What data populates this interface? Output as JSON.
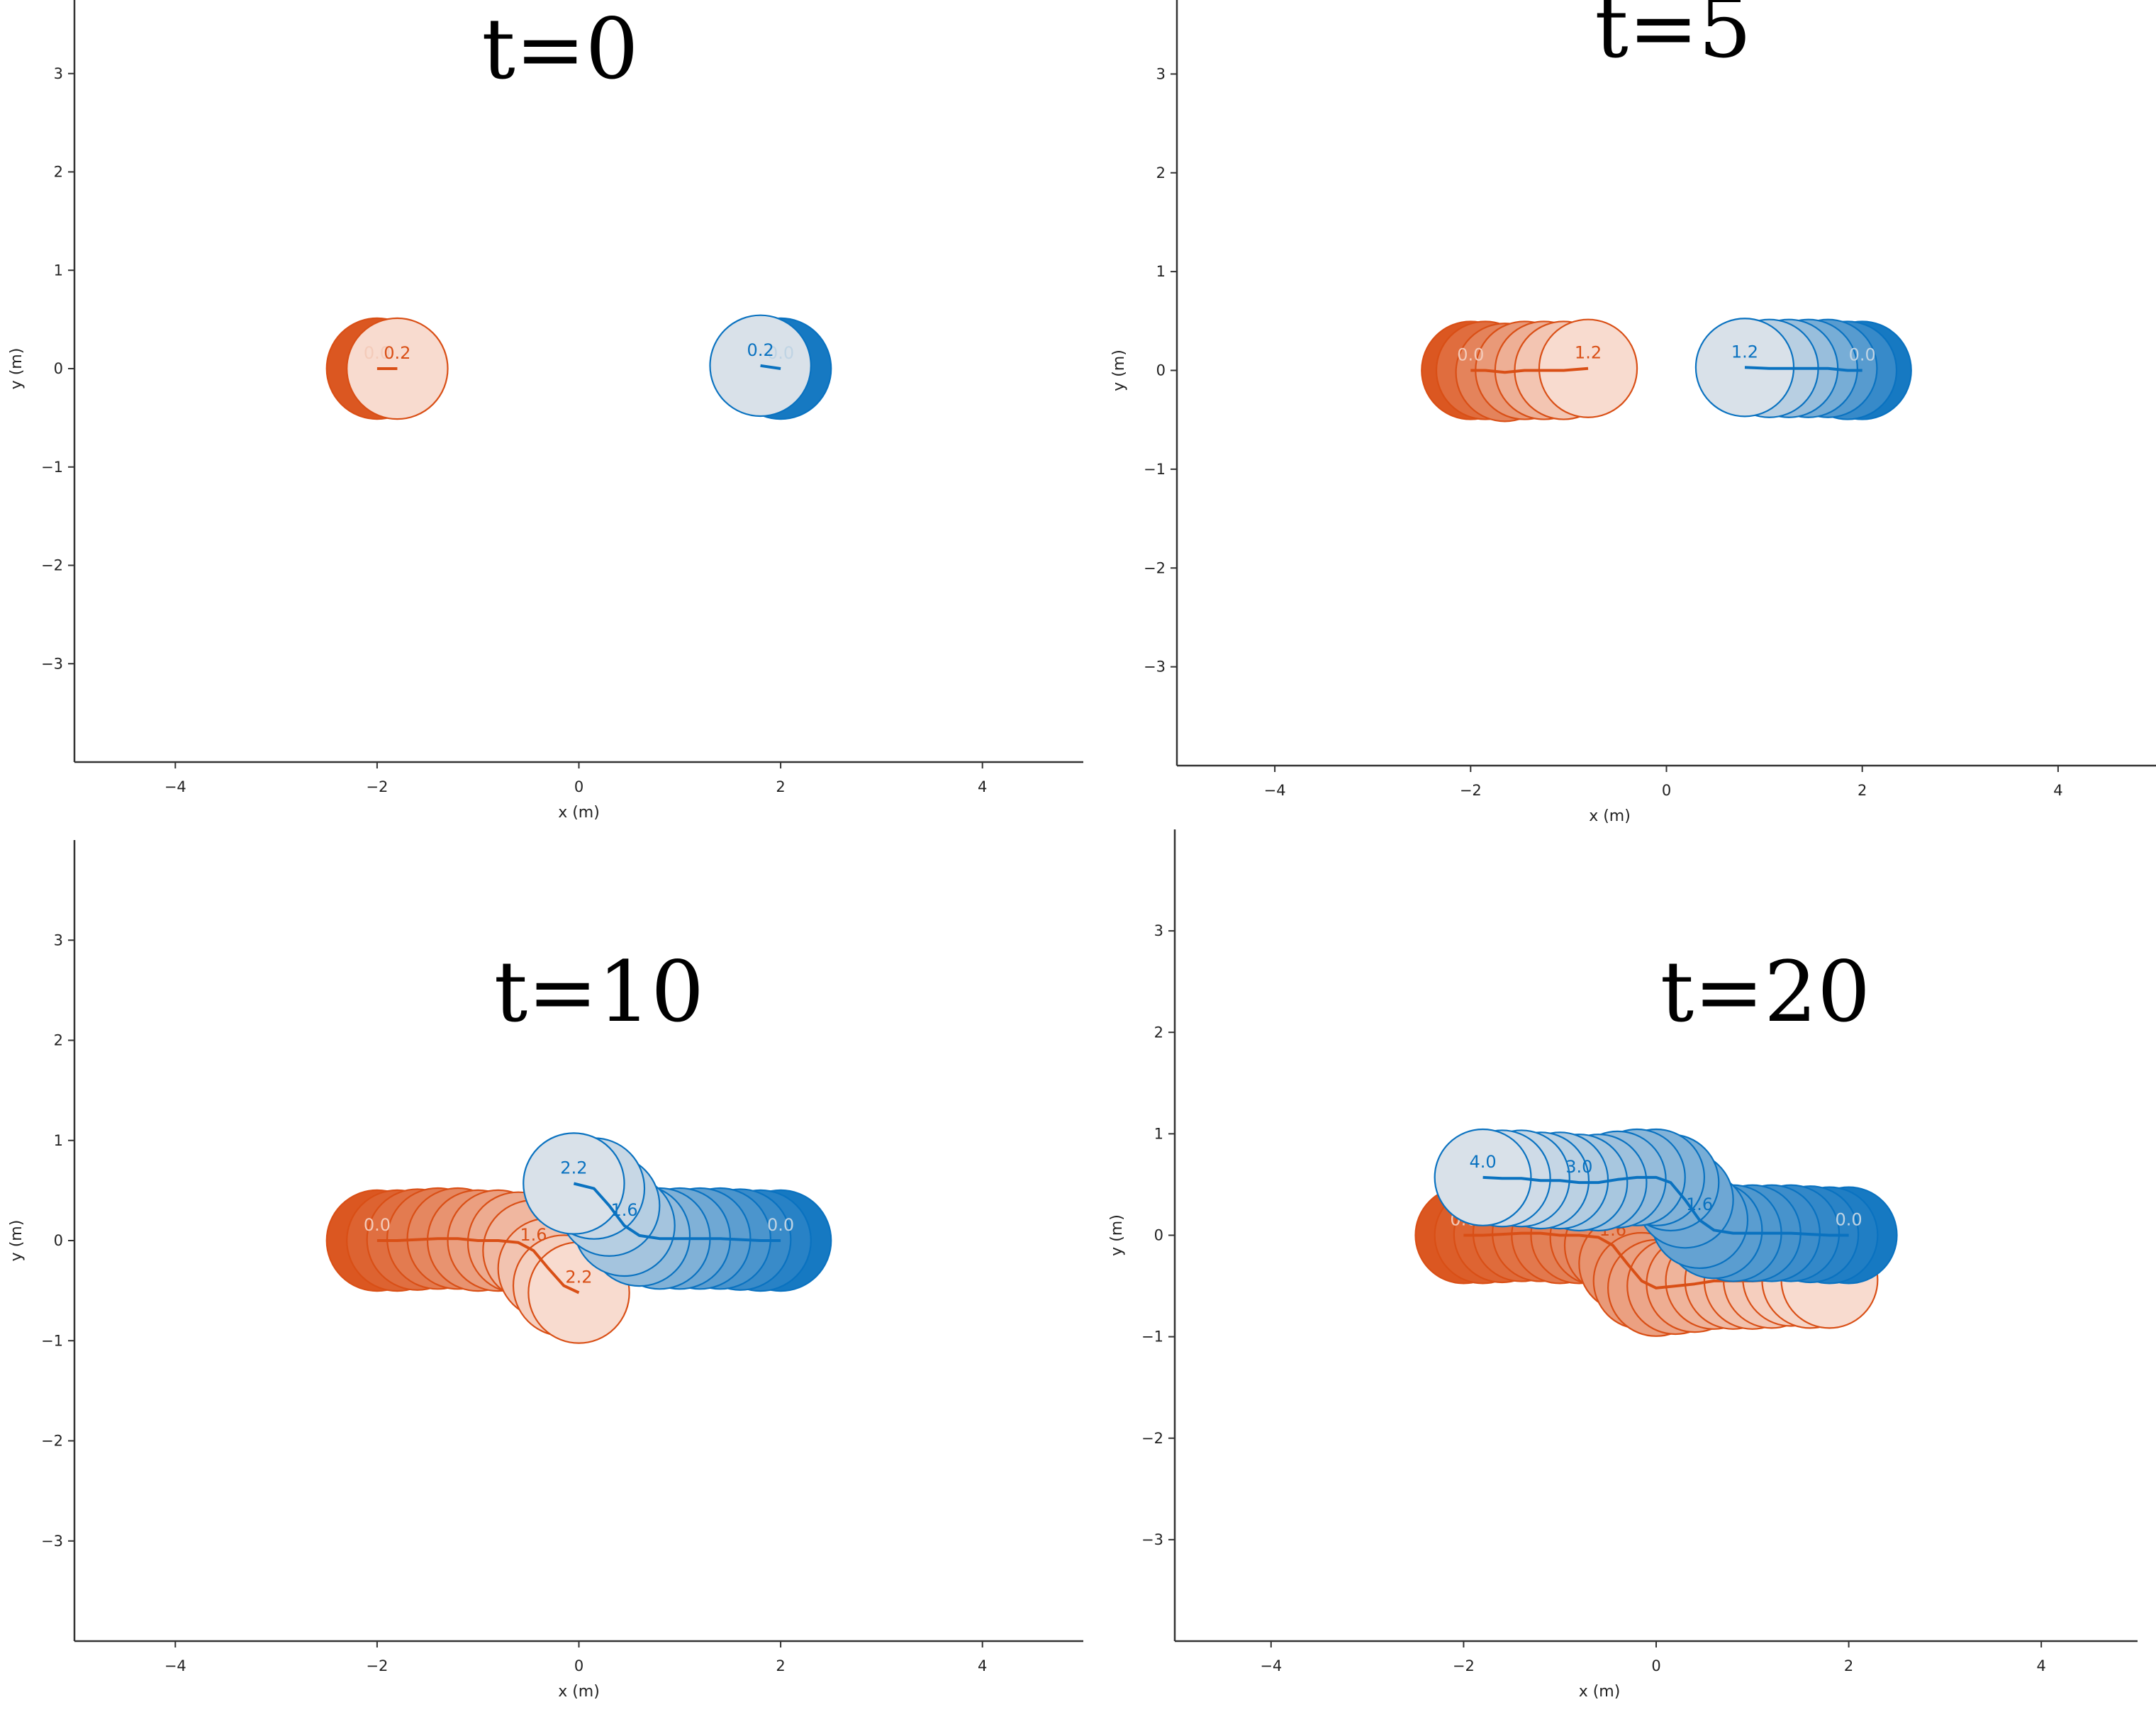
{
  "chart_data": [
    {
      "type": "scatter",
      "title": "t=0",
      "xlabel": "x (m)",
      "ylabel": "y (m)",
      "xlim": [
        -5,
        5
      ],
      "ylim": [
        -4,
        4
      ],
      "xticks": [
        -4,
        -2,
        0,
        2,
        4
      ],
      "yticks": [
        -3,
        -2,
        -1,
        0,
        1,
        2,
        3
      ],
      "grid": false,
      "agent_radius": 0.5,
      "series": [
        {
          "color": "#d94f16",
          "x": [
            -2.0,
            -1.8
          ],
          "y": [
            0.0,
            0.0
          ],
          "time_labels": [
            {
              "index": 0,
              "text": "0.0"
            },
            {
              "index": 1,
              "text": "0.2"
            }
          ]
        },
        {
          "color": "#0a72c0",
          "x": [
            2.0,
            1.8
          ],
          "y": [
            0.0,
            0.03
          ],
          "time_labels": [
            {
              "index": 0,
              "text": "0.0"
            },
            {
              "index": 1,
              "text": "0.2"
            }
          ]
        }
      ]
    },
    {
      "type": "scatter",
      "title": "t=5",
      "xlabel": "x (m)",
      "ylabel": "y (m)",
      "xlim": [
        -5,
        5
      ],
      "ylim": [
        -4,
        4
      ],
      "xticks": [
        -4,
        -2,
        0,
        2,
        4
      ],
      "yticks": [
        -3,
        -2,
        -1,
        0,
        1,
        2,
        3
      ],
      "grid": false,
      "agent_radius": 0.5,
      "series": [
        {
          "color": "#d94f16",
          "x": [
            -2.0,
            -1.85,
            -1.65,
            -1.45,
            -1.25,
            -1.05,
            -0.8
          ],
          "y": [
            0.0,
            0.0,
            -0.02,
            0.0,
            0.0,
            0.0,
            0.02
          ],
          "time_labels": [
            {
              "index": 0,
              "text": "0.0"
            },
            {
              "index": 6,
              "text": "1.2"
            }
          ]
        },
        {
          "color": "#0a72c0",
          "x": [
            2.0,
            1.85,
            1.65,
            1.45,
            1.25,
            1.05,
            0.8
          ],
          "y": [
            0.0,
            0.0,
            0.02,
            0.02,
            0.02,
            0.02,
            0.03
          ],
          "time_labels": [
            {
              "index": 0,
              "text": "0.0"
            },
            {
              "index": 6,
              "text": "1.2"
            }
          ]
        }
      ]
    },
    {
      "type": "scatter",
      "title": "t=10",
      "xlabel": "x (m)",
      "ylabel": "y (m)",
      "xlim": [
        -5,
        5
      ],
      "ylim": [
        -4,
        4
      ],
      "xticks": [
        -4,
        -2,
        0,
        2,
        4
      ],
      "yticks": [
        -3,
        -2,
        -1,
        0,
        1,
        2,
        3
      ],
      "grid": false,
      "agent_radius": 0.5,
      "series": [
        {
          "color": "#d94f16",
          "x": [
            -2.0,
            -1.8,
            -1.6,
            -1.4,
            -1.2,
            -1.0,
            -0.8,
            -0.6,
            -0.45,
            -0.3,
            -0.15,
            0.0
          ],
          "y": [
            0.0,
            0.0,
            0.01,
            0.02,
            0.02,
            0.0,
            0.0,
            -0.02,
            -0.1,
            -0.28,
            -0.45,
            -0.52
          ],
          "time_labels": [
            {
              "index": 0,
              "text": "0.0"
            },
            {
              "index": 8,
              "text": "1.6"
            },
            {
              "index": 11,
              "text": "2.2"
            }
          ]
        },
        {
          "color": "#0a72c0",
          "x": [
            2.0,
            1.8,
            1.6,
            1.4,
            1.2,
            1.0,
            0.8,
            0.6,
            0.45,
            0.3,
            0.15,
            -0.05
          ],
          "y": [
            0.0,
            0.0,
            0.01,
            0.02,
            0.02,
            0.02,
            0.02,
            0.05,
            0.15,
            0.35,
            0.52,
            0.57
          ],
          "time_labels": [
            {
              "index": 0,
              "text": "0.0"
            },
            {
              "index": 8,
              "text": "1.6"
            },
            {
              "index": 11,
              "text": "2.2"
            }
          ]
        }
      ]
    },
    {
      "type": "scatter",
      "title": "t=20",
      "xlabel": "x (m)",
      "ylabel": "y (m)",
      "xlim": [
        -5,
        5
      ],
      "ylim": [
        -4,
        4
      ],
      "xticks": [
        -4,
        -2,
        0,
        2,
        4
      ],
      "yticks": [
        -3,
        -2,
        -1,
        0,
        1,
        2,
        3
      ],
      "grid": false,
      "agent_radius": 0.5,
      "series": [
        {
          "color": "#d94f16",
          "x": [
            -2.0,
            -1.8,
            -1.6,
            -1.4,
            -1.2,
            -1.0,
            -0.8,
            -0.6,
            -0.45,
            -0.3,
            -0.15,
            0.0,
            0.2,
            0.4,
            0.6,
            0.8,
            1.0,
            1.2,
            1.4,
            1.6,
            1.8
          ],
          "y": [
            0.0,
            0.0,
            0.01,
            0.02,
            0.02,
            0.0,
            0.0,
            -0.02,
            -0.1,
            -0.28,
            -0.45,
            -0.52,
            -0.5,
            -0.48,
            -0.45,
            -0.45,
            -0.45,
            -0.44,
            -0.42,
            -0.44,
            -0.44
          ],
          "time_labels": [
            {
              "index": 0,
              "text": "0.0"
            },
            {
              "index": 8,
              "text": "1.6"
            },
            {
              "index": 15,
              "text": "3.0"
            },
            {
              "index": 20,
              "text": "4.0"
            }
          ]
        },
        {
          "color": "#0a72c0",
          "x": [
            2.0,
            1.8,
            1.6,
            1.4,
            1.2,
            1.0,
            0.8,
            0.6,
            0.45,
            0.3,
            0.15,
            0.0,
            -0.2,
            -0.4,
            -0.6,
            -0.8,
            -1.0,
            -1.2,
            -1.4,
            -1.6,
            -1.8
          ],
          "y": [
            0.0,
            0.0,
            0.01,
            0.02,
            0.02,
            0.02,
            0.02,
            0.05,
            0.15,
            0.35,
            0.52,
            0.57,
            0.57,
            0.55,
            0.52,
            0.52,
            0.54,
            0.54,
            0.56,
            0.56,
            0.57
          ],
          "time_labels": [
            {
              "index": 0,
              "text": "0.0"
            },
            {
              "index": 8,
              "text": "1.6"
            },
            {
              "index": 15,
              "text": "3.0"
            },
            {
              "index": 20,
              "text": "4.0"
            }
          ]
        }
      ]
    }
  ]
}
